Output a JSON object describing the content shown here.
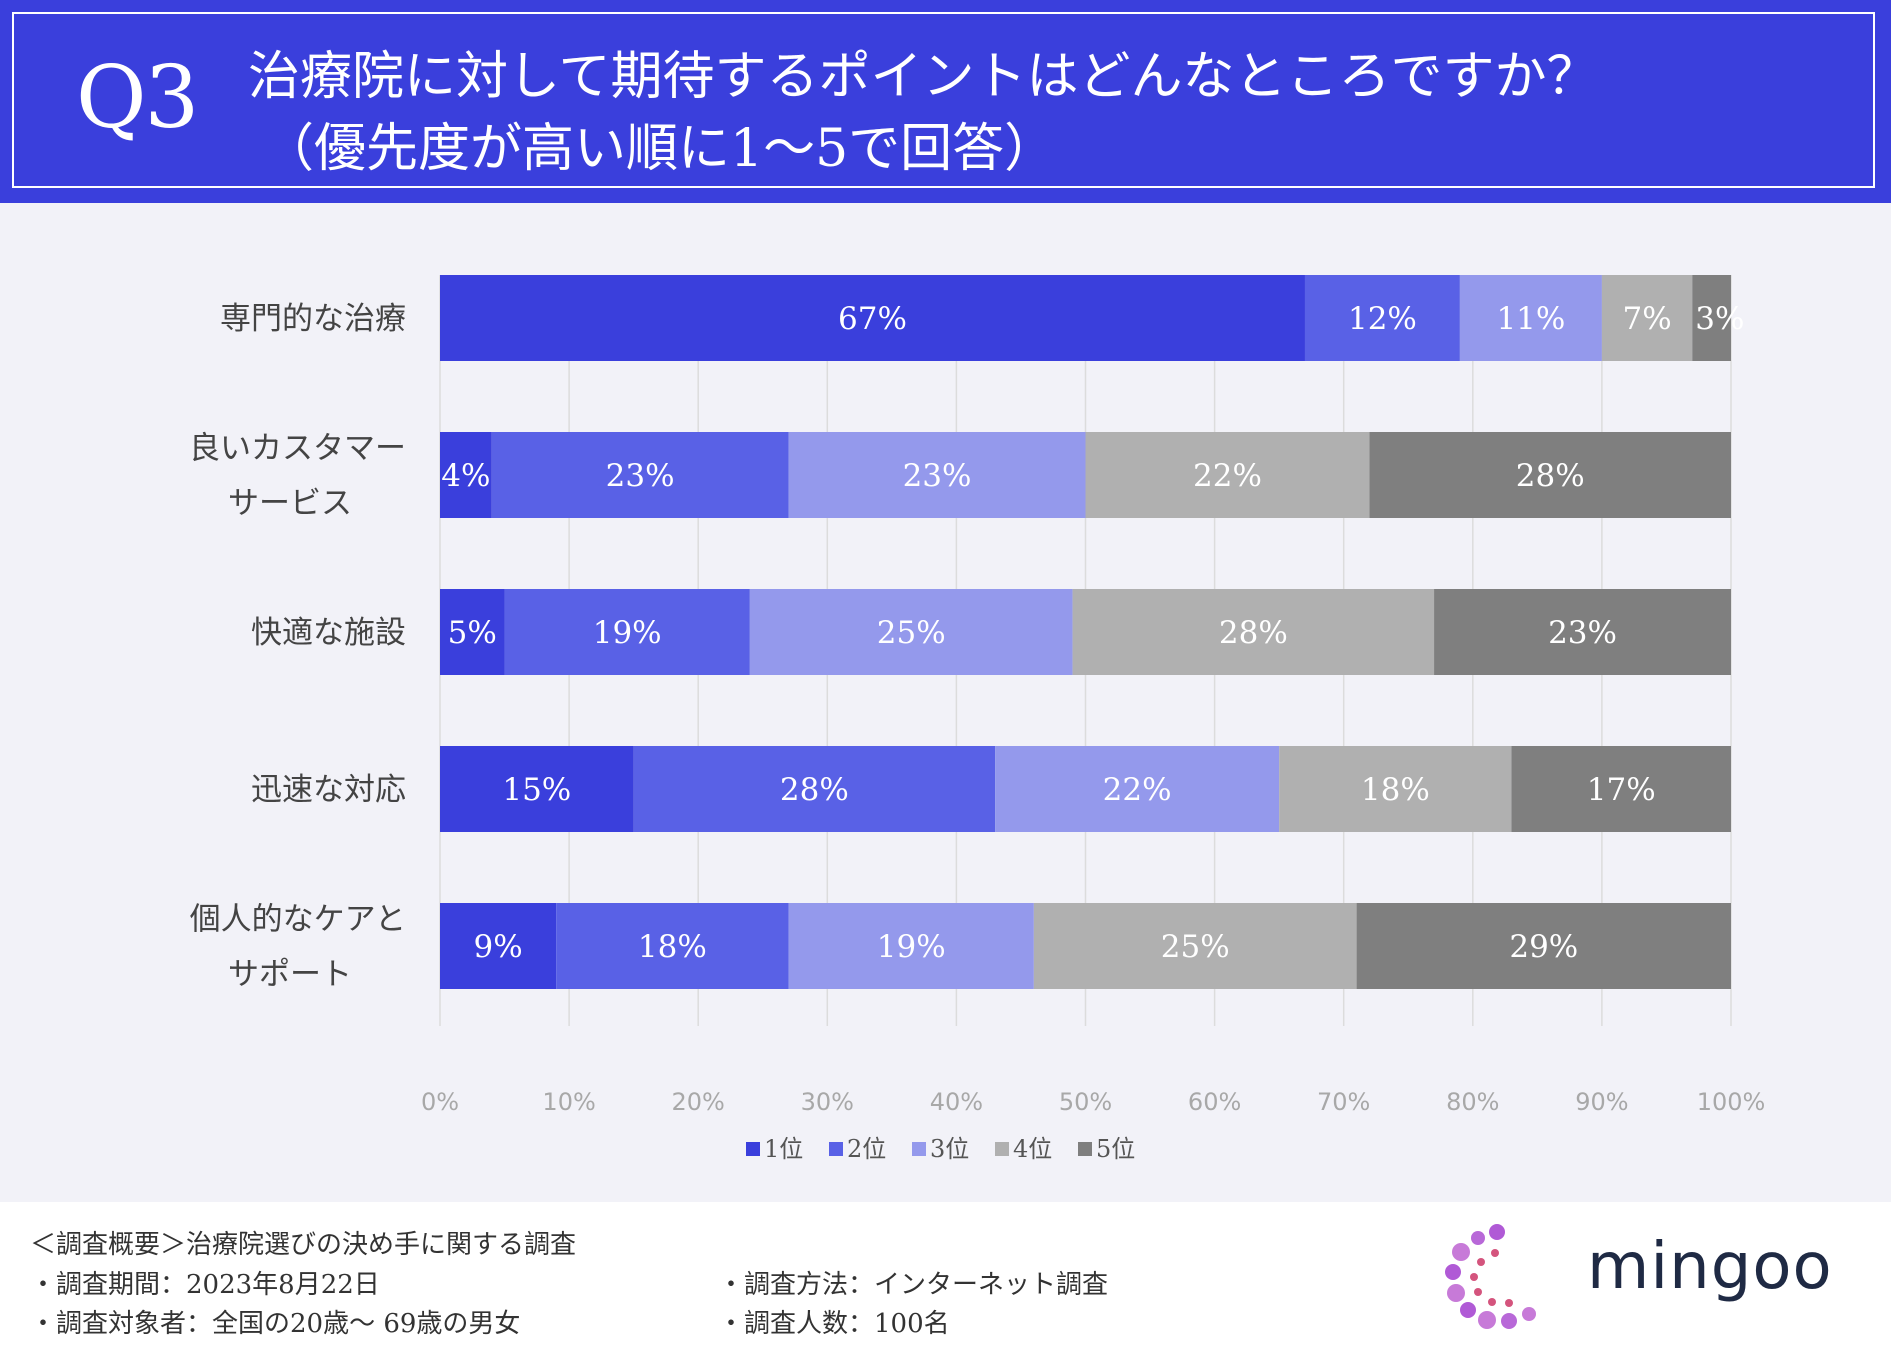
{
  "header": {
    "q_label": "Q3",
    "title_line1": "治療院に対して期待するポイントはどんなところですか？",
    "title_line2": "（優先度が高い順に1〜5で回答）",
    "bg_color": "#3a3fdc"
  },
  "chart_data": {
    "type": "bar",
    "orientation": "horizontal",
    "stacked": true,
    "categories": [
      [
        "専門的な治療"
      ],
      [
        "良いカスタマー",
        "サービス"
      ],
      [
        "快適な施設"
      ],
      [
        "迅速な対応"
      ],
      [
        "個人的なケアと",
        "サポート"
      ]
    ],
    "series": [
      {
        "name": "1位",
        "color": "#3a3fdc",
        "values": [
          67,
          4,
          5,
          15,
          9
        ]
      },
      {
        "name": "2位",
        "color": "#5961e6",
        "values": [
          12,
          23,
          19,
          28,
          18
        ]
      },
      {
        "name": "3位",
        "color": "#9499ec",
        "values": [
          11,
          23,
          25,
          22,
          19
        ]
      },
      {
        "name": "4位",
        "color": "#b0b0b0",
        "values": [
          7,
          22,
          28,
          18,
          25
        ]
      },
      {
        "name": "5位",
        "color": "#7f7f7f",
        "values": [
          3,
          28,
          23,
          17,
          29
        ]
      }
    ],
    "xlim": [
      0,
      100
    ],
    "xticks": [
      "0%",
      "10%",
      "20%",
      "30%",
      "40%",
      "50%",
      "60%",
      "70%",
      "80%",
      "90%",
      "100%"
    ],
    "value_suffix": "%",
    "grid": true,
    "legend_position": "bottom"
  },
  "footer": {
    "summary": "＜調査概要＞治療院選びの決め手に関する調査",
    "period": "・調査期間：2023年8月22日",
    "target": "・調査対象者：全国の20歳〜 69歳の男女",
    "method": "・調査方法：インターネット調査",
    "count": "・調査人数：100名"
  },
  "brand": {
    "name": "mingoo",
    "logo_icon": "dotted-c-logo-icon",
    "text_color": "#1f2a44"
  }
}
